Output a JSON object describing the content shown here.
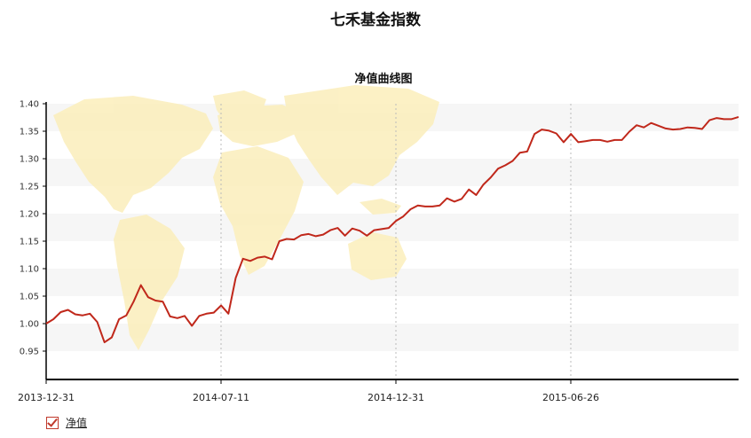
{
  "page": {
    "title": "七禾基金指数"
  },
  "legend": {
    "label": "净值",
    "checked": true
  },
  "colors": {
    "line": "#c0281b",
    "band": "#f6f6f6",
    "map": "#fbeebb",
    "axis": "#000000"
  },
  "chart_data": {
    "type": "line",
    "title": "净值曲线图",
    "xlabel": "",
    "ylabel": "",
    "ylim": [
      0.9,
      1.4
    ],
    "yticks": [
      "0.95",
      "1.00",
      "1.05",
      "1.10",
      "1.15",
      "1.20",
      "1.25",
      "1.30",
      "1.35",
      "1.40"
    ],
    "xticks": [
      "2013-12-31",
      "2014-07-11",
      "2014-12-31",
      "2015-06-26"
    ],
    "grid": "alternating horizontal bands, dotted vertical lines",
    "background": "world-map",
    "series": [
      {
        "name": "净值",
        "values": [
          1.0,
          1.008,
          1.021,
          1.025,
          1.017,
          1.015,
          1.018,
          1.003,
          0.966,
          0.975,
          1.008,
          1.015,
          1.04,
          1.07,
          1.048,
          1.042,
          1.04,
          1.013,
          1.01,
          1.014,
          0.996,
          1.014,
          1.018,
          1.02,
          1.033,
          1.018,
          1.083,
          1.118,
          1.114,
          1.12,
          1.122,
          1.117,
          1.15,
          1.154,
          1.153,
          1.161,
          1.163,
          1.159,
          1.162,
          1.17,
          1.174,
          1.16,
          1.173,
          1.169,
          1.16,
          1.17,
          1.172,
          1.174,
          1.187,
          1.195,
          1.208,
          1.215,
          1.213,
          1.213,
          1.215,
          1.228,
          1.222,
          1.227,
          1.244,
          1.234,
          1.253,
          1.266,
          1.282,
          1.288,
          1.296,
          1.311,
          1.313,
          1.345,
          1.353,
          1.351,
          1.346,
          1.33,
          1.345,
          1.33,
          1.332,
          1.334,
          1.334,
          1.331,
          1.334,
          1.334,
          1.349,
          1.361,
          1.357,
          1.365,
          1.36,
          1.355,
          1.353,
          1.354,
          1.357,
          1.356,
          1.354,
          1.37,
          1.374,
          1.372,
          1.372,
          1.376
        ]
      }
    ]
  }
}
